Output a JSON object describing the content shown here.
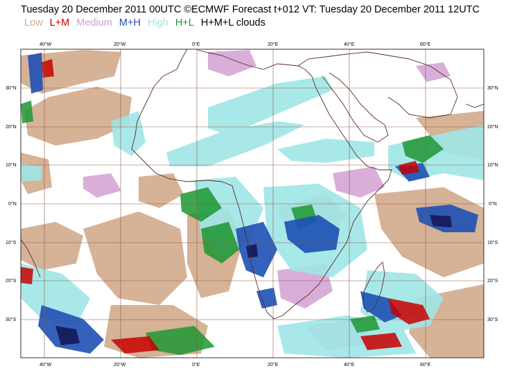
{
  "title": "Tuesday 20 December 2011 00UTC ©ECMWF Forecast t+012 VT: Tuesday 20 December 2011 12UTC",
  "legend": [
    {
      "label": "Low",
      "color": "#d2aa8c"
    },
    {
      "label": "L+M",
      "color": "#c80000"
    },
    {
      "label": "Medium",
      "color": "#d2a0d2"
    },
    {
      "label": "M+H",
      "color": "#1e50b4"
    },
    {
      "label": "High",
      "color": "#a0e6e6"
    },
    {
      "label": "H+L",
      "color": "#1e9632"
    },
    {
      "label": "H+M+L clouds",
      "color": "#000000"
    }
  ],
  "axes": {
    "lon_labels": [
      "40°W",
      "20°W",
      "0°E",
      "20°E",
      "40°E",
      "60°E"
    ],
    "lat_labels": [
      "30°N",
      "20°N",
      "10°N",
      "0°N",
      "10°S",
      "20°S",
      "30°S"
    ]
  }
}
